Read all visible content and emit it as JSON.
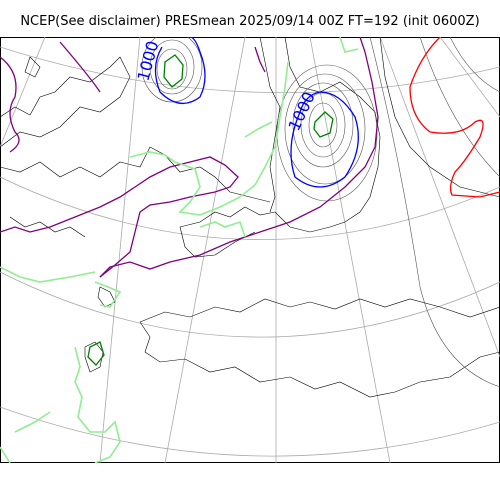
{
  "title": "NCEP(See disclaimer) PRESmean 2025/09/14 00Z FT=192 (init 0600Z)",
  "contour_labels": {
    "low_west": "1000",
    "low_east": "1000"
  },
  "colors": {
    "coastline": "#000000",
    "graticule": "#aaaaaa",
    "isobar": "#555555",
    "contour_1000": "#0000ff",
    "low_center": "#008000",
    "contour_purple": "#800080",
    "contour_red": "#ff0000",
    "contour_green_light": "#90ee90"
  }
}
